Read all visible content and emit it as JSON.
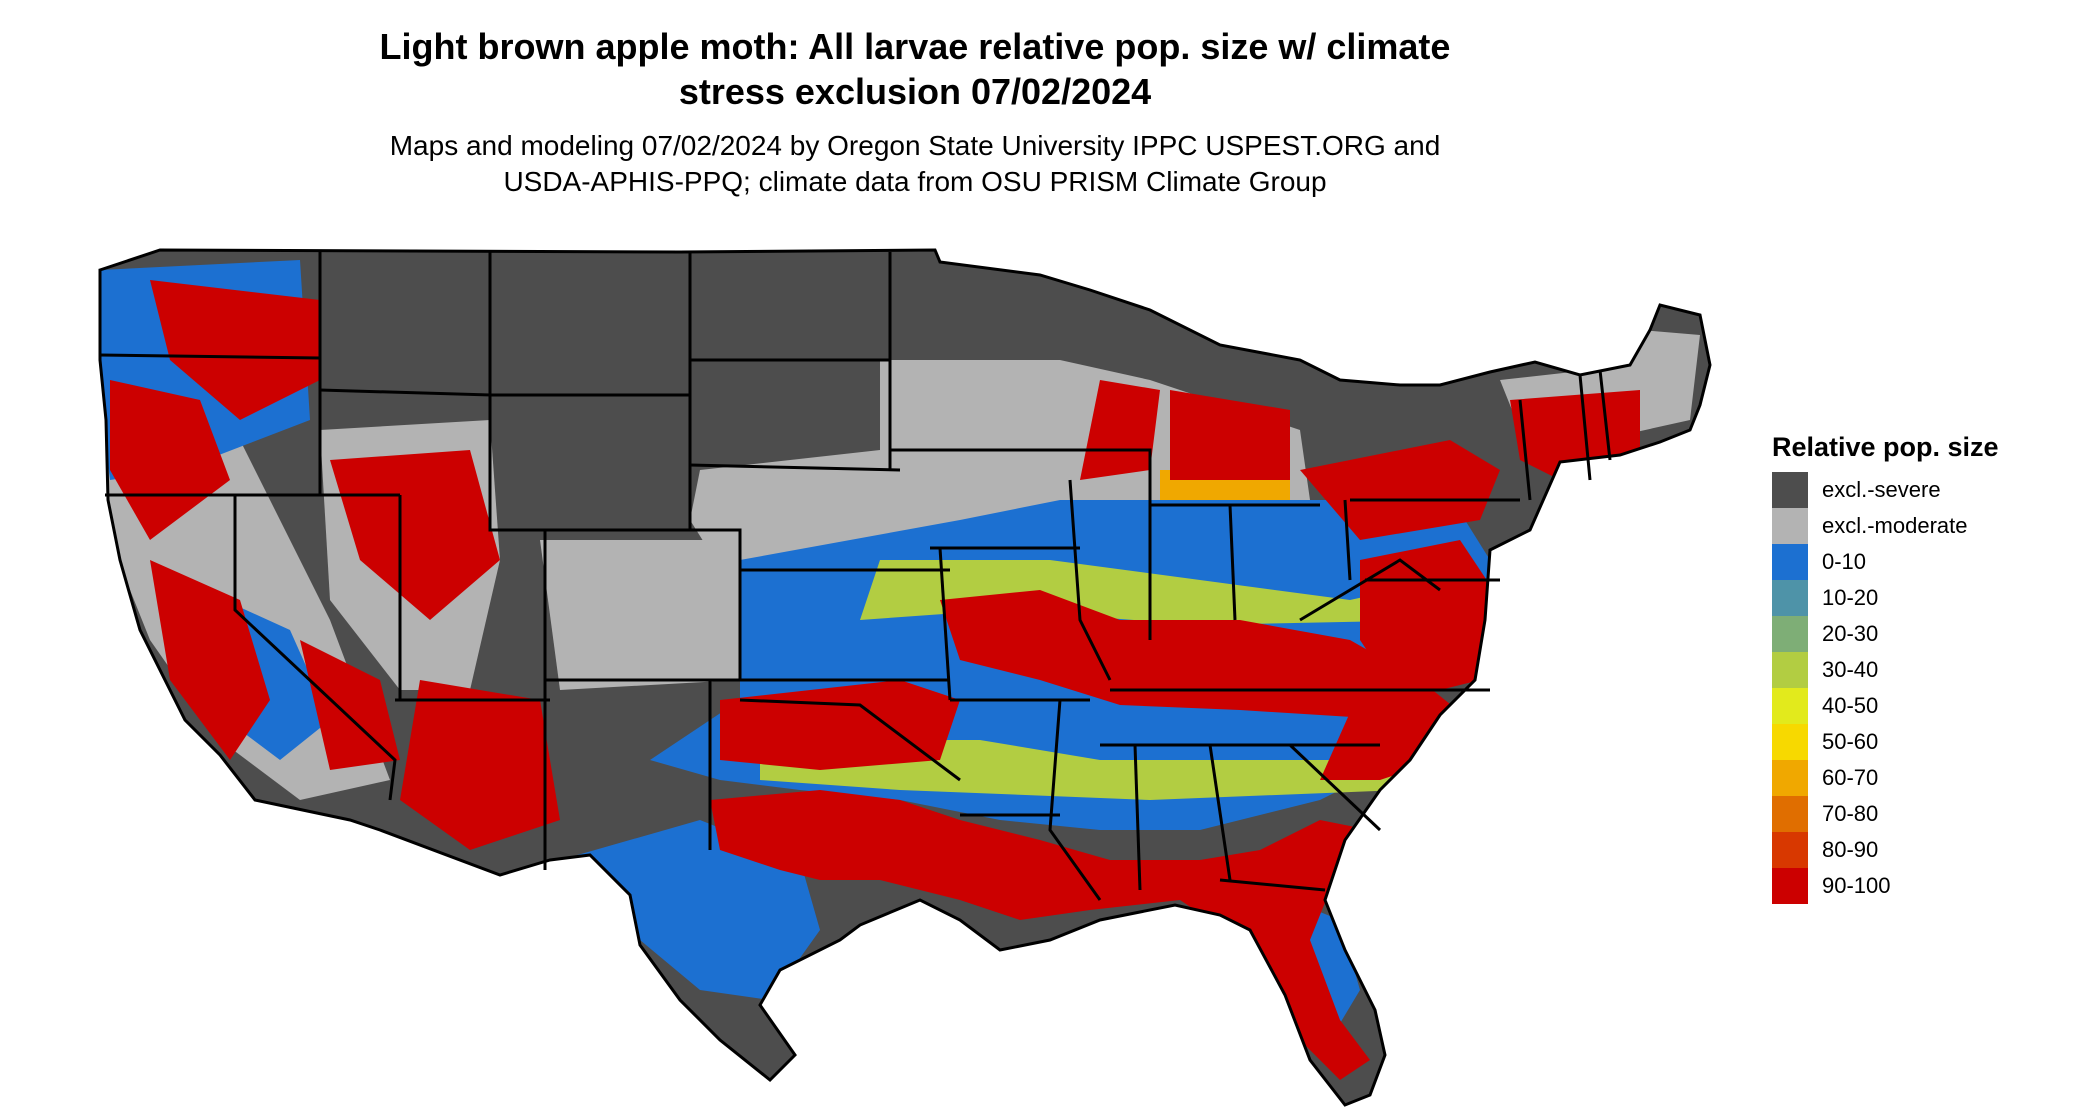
{
  "title": {
    "line1": "Light brown apple moth: All larvae relative pop. size w/ climate",
    "line2": "stress exclusion 07/02/2024"
  },
  "subtitle": {
    "line1": "Maps and modeling 07/02/2024 by Oregon State University IPPC USPEST.ORG and",
    "line2": "USDA-APHIS-PPQ; climate data from OSU PRISM Climate Group"
  },
  "legend": {
    "title": "Relative pop. size",
    "items": [
      {
        "label": "excl.-severe",
        "color": "#4d4d4d"
      },
      {
        "label": "excl.-moderate",
        "color": "#b3b3b3"
      },
      {
        "label": "0-10",
        "color": "#1c70d1"
      },
      {
        "label": "10-20",
        "color": "#4e93a8"
      },
      {
        "label": "20-30",
        "color": "#7eae76"
      },
      {
        "label": "30-40",
        "color": "#b2cd42"
      },
      {
        "label": "40-50",
        "color": "#e2ea1c"
      },
      {
        "label": "50-60",
        "color": "#f7d900"
      },
      {
        "label": "60-70",
        "color": "#f0a800"
      },
      {
        "label": "70-80",
        "color": "#e06e00"
      },
      {
        "label": "80-90",
        "color": "#d83800"
      },
      {
        "label": "90-100",
        "color": "#cc0000"
      }
    ]
  },
  "map": {
    "region": "Contiguous United States",
    "zones": {
      "severe": "#4d4d4d",
      "moderate": "#b3b3b3",
      "low": "#1c70d1",
      "mid": "#b2cd42",
      "orange": "#f0a800",
      "high": "#cc0000"
    },
    "border_color": "#000000"
  }
}
